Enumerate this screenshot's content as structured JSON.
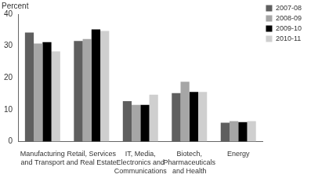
{
  "chart_data": {
    "type": "bar",
    "y_label": "Percent",
    "categories": [
      "Manufacturing and Transport",
      "Retail, Services and Real Estate",
      "IT, Media, Electronics and Communications",
      "Biotech, Pharmaceuticals and Health",
      "Energy"
    ],
    "series": [
      {
        "name": "2007-08",
        "color": "#5f5f5f",
        "values": [
          34.2,
          31.6,
          12.7,
          15.2,
          5.9
        ]
      },
      {
        "name": "2008-09",
        "color": "#a6a6a6",
        "values": [
          30.8,
          32.2,
          11.5,
          18.8,
          6.4
        ]
      },
      {
        "name": "2009-10",
        "color": "#000000",
        "values": [
          31.2,
          35.2,
          11.5,
          15.6,
          6.1
        ]
      },
      {
        "name": "2010-11",
        "color": "#cfcfcf",
        "values": [
          28.3,
          34.7,
          14.7,
          15.6,
          6.4
        ]
      }
    ],
    "ylim": [
      0,
      40
    ],
    "yticks": [
      0,
      10,
      20,
      30,
      40
    ],
    "grid": false,
    "legend": "top right"
  }
}
